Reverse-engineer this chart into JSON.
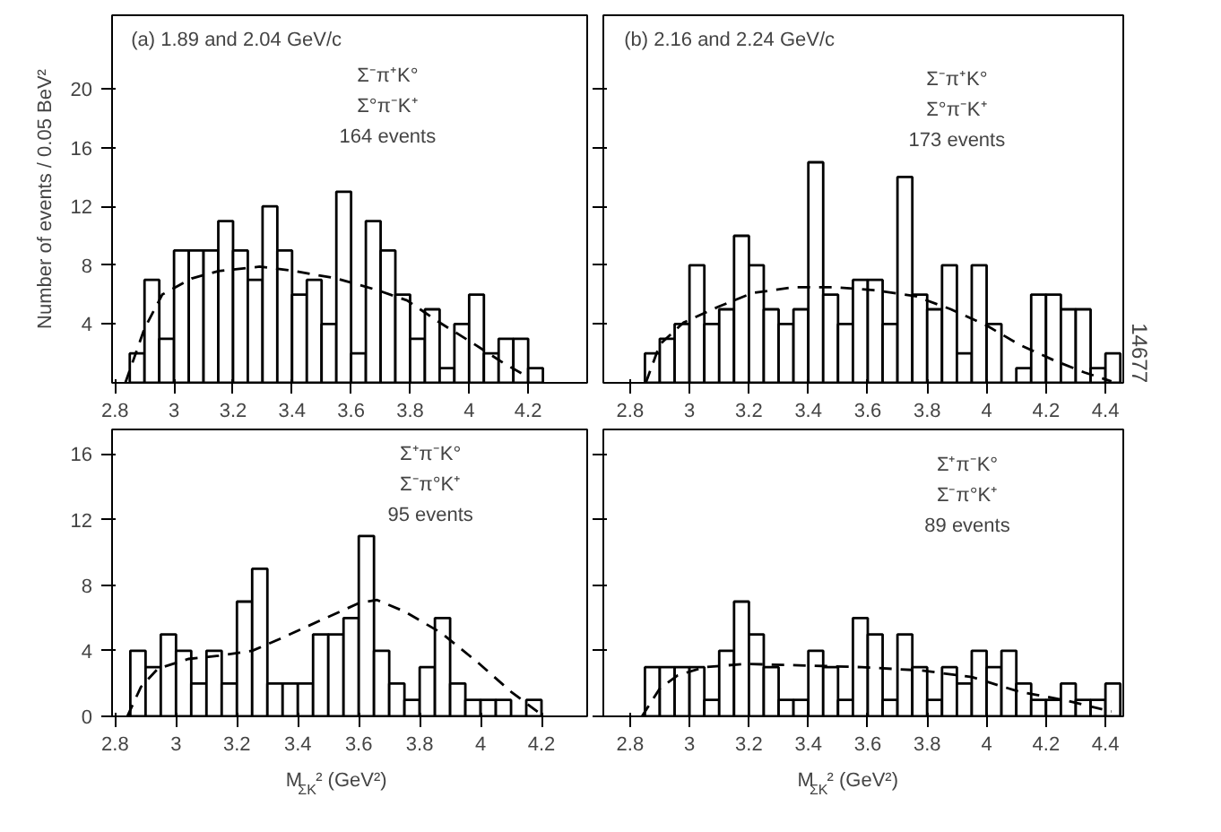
{
  "chart_data": [
    {
      "type": "histogram",
      "title": "(a) 1.89 and 2.04 GeV/c",
      "ylabel": "Number of events / 0.05 BeV²",
      "color": "#000000",
      "bins": [
        2.85,
        2.9,
        2.95,
        3.0,
        3.05,
        3.1,
        3.15,
        3.2,
        3.25,
        3.3,
        3.35,
        3.4,
        3.45,
        3.5,
        3.55,
        3.6,
        3.65,
        3.7,
        3.75,
        3.8,
        3.85,
        3.9,
        3.95,
        4.0,
        4.05,
        4.1,
        4.15,
        4.2,
        4.25
      ],
      "values": [
        2,
        7,
        3,
        9,
        9,
        9,
        11,
        9,
        7,
        12,
        9,
        6,
        7,
        4,
        13,
        2,
        11,
        9,
        6,
        3,
        5,
        1,
        4,
        6,
        2,
        3,
        3,
        1
      ],
      "series": [
        {
          "type": "line",
          "color": "#000000",
          "line_style": "dashed",
          "x": [
            2.835,
            2.9,
            2.96,
            3.06,
            3.15,
            3.29,
            3.41,
            3.55,
            3.69,
            3.79,
            3.9,
            4.02,
            4.12,
            4.19
          ],
          "values": [
            0,
            3.7,
            6.0,
            7.1,
            7.6,
            7.9,
            7.6,
            7.1,
            6.3,
            5.6,
            4.1,
            2.6,
            1.3,
            0.5
          ]
        }
      ],
      "annotations": [
        "Σ⁻π⁺K°",
        "Σ°π⁻K⁺",
        "164 events"
      ],
      "xlim": [
        2.79,
        4.4
      ],
      "ylim": [
        0,
        25
      ],
      "xticks": [
        2.8,
        3.0,
        3.2,
        3.4,
        3.6,
        3.8,
        4.0,
        4.2
      ],
      "yticks": [
        4,
        8,
        12,
        16,
        20
      ],
      "grid": false
    },
    {
      "type": "histogram",
      "title": "(b) 2.16 and 2.24 GeV/c",
      "color": "#000000",
      "bins": [
        2.85,
        2.9,
        2.95,
        3.0,
        3.05,
        3.1,
        3.15,
        3.2,
        3.25,
        3.3,
        3.35,
        3.4,
        3.45,
        3.5,
        3.55,
        3.6,
        3.65,
        3.7,
        3.75,
        3.8,
        3.85,
        3.9,
        3.95,
        4.0,
        4.05,
        4.1,
        4.15,
        4.2,
        4.25,
        4.3,
        4.35,
        4.4,
        4.45
      ],
      "values": [
        2,
        3,
        4,
        8,
        4,
        5,
        10,
        8,
        5,
        4,
        5,
        15,
        6,
        4,
        7,
        7,
        4,
        14,
        6,
        5,
        8,
        2,
        8,
        4,
        0,
        1,
        6,
        6,
        5,
        5,
        1,
        2
      ],
      "series": [
        {
          "type": "line",
          "color": "#000000",
          "line_style": "dashed",
          "x": [
            2.853,
            2.9,
            2.98,
            3.1,
            3.21,
            3.35,
            3.49,
            3.62,
            3.76,
            3.88,
            4.0,
            4.11,
            4.23,
            4.33,
            4.42
          ],
          "values": [
            0,
            2.6,
            4.1,
            5.2,
            6.1,
            6.5,
            6.5,
            6.3,
            5.9,
            5.0,
            3.9,
            2.6,
            1.5,
            0.7,
            0.1
          ]
        }
      ],
      "annotations": [
        "Σ⁻π⁺K°",
        "Σ°π⁻K⁺",
        "173 events",
        "14677"
      ],
      "xlim": [
        2.71,
        4.46
      ],
      "ylim": [
        0,
        25
      ],
      "xticks": [
        2.8,
        3.0,
        3.2,
        3.4,
        3.6,
        3.8,
        4.0,
        4.2,
        4.4
      ],
      "yticks": [
        4,
        8,
        12,
        16,
        20
      ],
      "tick_labels": "x",
      "grid": false
    },
    {
      "type": "histogram",
      "xlabel": "M$_{ΣK}$² (GeV²)",
      "color": "#000000",
      "bins": [
        2.85,
        2.9,
        2.95,
        3.0,
        3.05,
        3.1,
        3.15,
        3.2,
        3.25,
        3.3,
        3.35,
        3.4,
        3.45,
        3.5,
        3.55,
        3.6,
        3.65,
        3.7,
        3.75,
        3.8,
        3.85,
        3.9,
        3.95,
        4.0,
        4.05,
        4.1,
        4.15,
        4.2
      ],
      "values": [
        4,
        3,
        5,
        4,
        2,
        4,
        2,
        7,
        9,
        2,
        2,
        2,
        5,
        5,
        6,
        11,
        4,
        2,
        1,
        3,
        6,
        2,
        1,
        1,
        1,
        0,
        1
      ],
      "series": [
        {
          "type": "line",
          "color": "#000000",
          "line_style": "dashed",
          "x": [
            2.84,
            2.885,
            2.94,
            3.04,
            3.14,
            3.25,
            3.35,
            3.48,
            3.6,
            3.66,
            3.75,
            3.87,
            3.99,
            4.1,
            4.2
          ],
          "values": [
            0,
            1.8,
            2.9,
            3.5,
            3.7,
            4.0,
            4.8,
            5.9,
            6.9,
            7.1,
            6.4,
            5.1,
            3.3,
            1.5,
            0.1
          ]
        }
      ],
      "annotations": [
        "Σ⁺π⁻K°",
        "Σ⁻π°K⁺",
        "95 events"
      ],
      "xlim": [
        2.79,
        4.35
      ],
      "ylim": [
        0,
        17.5
      ],
      "xticks": [
        2.8,
        3.0,
        3.2,
        3.4,
        3.6,
        3.8,
        4.0,
        4.2
      ],
      "yticks": [
        0,
        4,
        8,
        12,
        16
      ],
      "grid": false
    },
    {
      "type": "histogram",
      "xlabel": "M$_{ΣK}$² (GeV²)",
      "color": "#000000",
      "bins": [
        2.85,
        2.9,
        2.95,
        3.0,
        3.05,
        3.1,
        3.15,
        3.2,
        3.25,
        3.3,
        3.35,
        3.4,
        3.45,
        3.5,
        3.55,
        3.6,
        3.65,
        3.7,
        3.75,
        3.8,
        3.85,
        3.9,
        3.95,
        4.0,
        4.05,
        4.1,
        4.15,
        4.2,
        4.25,
        4.3,
        4.35,
        4.4,
        4.45
      ],
      "values": [
        3,
        3,
        3,
        3,
        1,
        4,
        7,
        5,
        3,
        1,
        1,
        4,
        3,
        1,
        6,
        5,
        1,
        5,
        3,
        1,
        3,
        2,
        4,
        3,
        4,
        2,
        1,
        1,
        2,
        1,
        1,
        2
      ],
      "series": [
        {
          "type": "line",
          "color": "#000000",
          "line_style": "dashed",
          "x": [
            2.84,
            2.9,
            2.96,
            3.05,
            3.19,
            3.39,
            3.58,
            3.78,
            3.95,
            4.11,
            4.26,
            4.42
          ],
          "values": [
            0,
            1.7,
            2.5,
            3.0,
            3.2,
            3.1,
            3.0,
            2.8,
            2.4,
            1.5,
            1.0,
            0.3
          ]
        }
      ],
      "annotations": [
        "Σ⁺π⁻K°",
        "Σ⁻π°K⁺",
        "89 events"
      ],
      "xlim": [
        2.71,
        4.46
      ],
      "ylim": [
        0,
        17.5
      ],
      "xticks": [
        2.8,
        3.0,
        3.2,
        3.4,
        3.6,
        3.8,
        4.0,
        4.2,
        4.4
      ],
      "yticks": [
        0,
        4,
        8,
        12,
        16
      ],
      "tick_labels": "x",
      "grid": false
    }
  ]
}
